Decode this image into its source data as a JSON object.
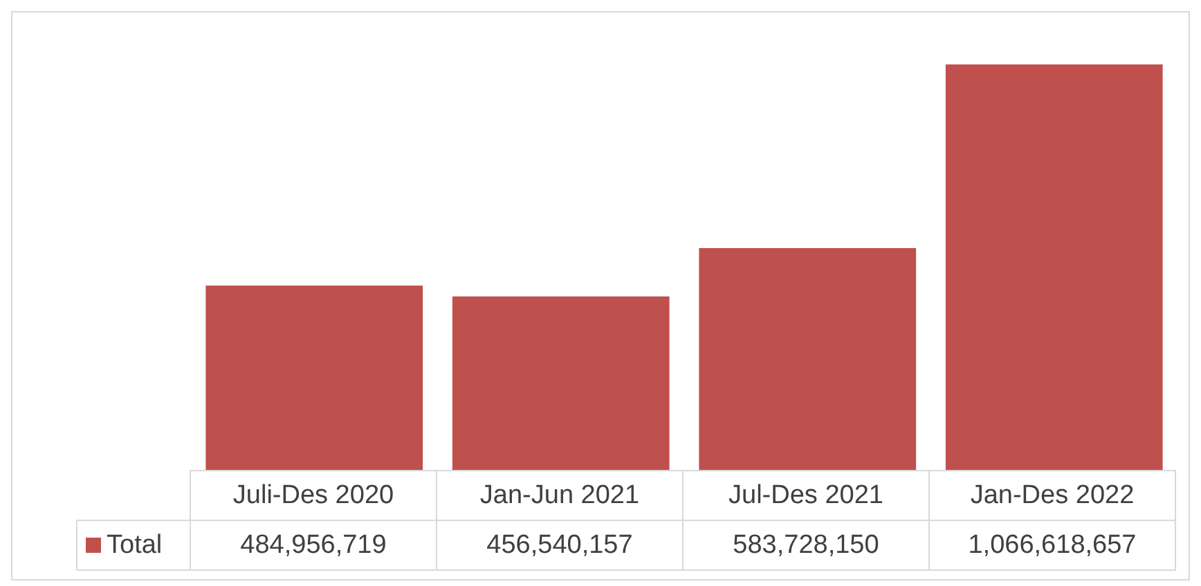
{
  "chart_data": {
    "type": "bar",
    "categories": [
      "Juli-Des 2020",
      "Jan-Jun 2021",
      "Jul-Des 2021",
      "Jan-Des 2022"
    ],
    "series": [
      {
        "name": "Total",
        "color": "#c0504d",
        "values": [
          484956719,
          456540157,
          583728150,
          1066618657
        ],
        "value_labels": [
          "484,956,719",
          "456,540,157",
          "583,728,150",
          "1,066,618,657"
        ]
      }
    ],
    "legend": "bottom left"
  }
}
